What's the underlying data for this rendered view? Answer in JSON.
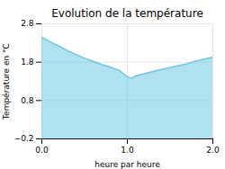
{
  "chart_data": {
    "type": "area",
    "title": "Evolution de la température",
    "x_label": "heure par heure",
    "y_label": "Température en °C",
    "x": [
      0,
      0.1,
      0.2,
      0.3,
      0.4,
      0.5,
      0.6,
      0.7,
      0.8,
      0.9,
      1.0,
      1.05,
      1.1,
      1.2,
      1.3,
      1.4,
      1.5,
      1.6,
      1.7,
      1.8,
      1.9,
      2.0
    ],
    "values": [
      2.45,
      2.33,
      2.22,
      2.1,
      2.0,
      1.9,
      1.82,
      1.74,
      1.67,
      1.59,
      1.42,
      1.38,
      1.44,
      1.5,
      1.56,
      1.61,
      1.66,
      1.71,
      1.76,
      1.83,
      1.88,
      1.93
    ],
    "color": "#6ec8e0",
    "xlim": [
      0,
      2
    ],
    "xticks": [
      0,
      1,
      2
    ],
    "ylim": [
      -0.2,
      2.8
    ],
    "yticks": [
      -0.2,
      0.8,
      1.8,
      2.8
    ],
    "grid": true
  }
}
